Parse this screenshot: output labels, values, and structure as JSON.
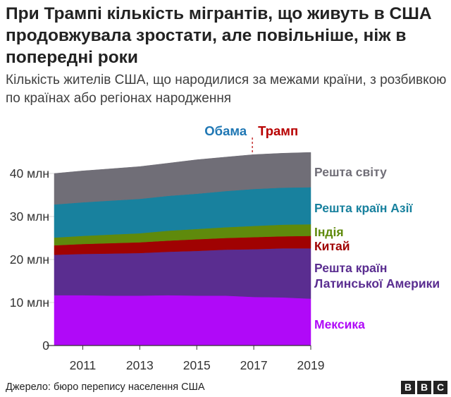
{
  "header": {
    "title": "При Трампі кількість мігрантів, що живуть в США продовжувала зростати, але повільніше, ніж в попередні роки",
    "subtitle": "Кількість жителів США, що народилися за межами країни, з розбивкою по країнах або регіонах народження"
  },
  "footer": {
    "source": "Джерело: бюро перепису населення США",
    "logo": [
      "B",
      "B",
      "C"
    ]
  },
  "annotations": {
    "obama": "Обама",
    "trump": "Трамп",
    "obama_color": "#1f77b4",
    "trump_color": "#b80000",
    "divider_year": 2017
  },
  "chart_data": {
    "type": "area",
    "stacked": true,
    "x": [
      2010,
      2011,
      2012,
      2013,
      2014,
      2015,
      2016,
      2017,
      2018,
      2019
    ],
    "xticks": [
      2011,
      2013,
      2015,
      2017,
      2019
    ],
    "xtick_labels": [
      "2011",
      "2013",
      "2015",
      "2017",
      "2019"
    ],
    "ylim": [
      0,
      45
    ],
    "yticks": [
      0,
      10,
      20,
      30,
      40
    ],
    "ytick_labels": [
      "0",
      "10 млн",
      "20 млн",
      "30 млн",
      "40 млн"
    ],
    "grid": true,
    "legend_placement": "right",
    "series": [
      {
        "name": "Мексика",
        "color": "#b009f8",
        "values": [
          11.7,
          11.7,
          11.6,
          11.6,
          11.7,
          11.6,
          11.6,
          11.3,
          11.2,
          10.9
        ]
      },
      {
        "name": "Решта країн Латинської Америки",
        "color": "#5a2d90",
        "values": [
          9.4,
          9.6,
          9.8,
          9.9,
          10.1,
          10.4,
          10.7,
          11.1,
          11.4,
          11.7
        ]
      },
      {
        "name": "Китай",
        "color": "#a00202",
        "values": [
          2.2,
          2.3,
          2.4,
          2.5,
          2.6,
          2.7,
          2.7,
          2.8,
          2.8,
          2.9
        ]
      },
      {
        "name": "Індія",
        "color": "#5f8a0c",
        "values": [
          1.8,
          1.9,
          2.0,
          2.1,
          2.3,
          2.4,
          2.5,
          2.6,
          2.7,
          2.7
        ]
      },
      {
        "name": "Решта країн Азії",
        "color": "#18819e",
        "values": [
          7.7,
          7.8,
          7.9,
          8.0,
          8.1,
          8.2,
          8.4,
          8.6,
          8.6,
          8.6
        ]
      },
      {
        "name": "Решта світу",
        "color": "#706e77",
        "values": [
          7.2,
          7.3,
          7.4,
          7.5,
          7.6,
          7.9,
          7.9,
          8.0,
          8.0,
          8.1
        ]
      }
    ],
    "legend": [
      {
        "lines": [
          "Решта світу"
        ],
        "color": "#706e77",
        "ref": 5
      },
      {
        "lines": [
          "Решта країн Азії"
        ],
        "color": "#18819e",
        "ref": 4
      },
      {
        "lines": [
          "Індія"
        ],
        "color": "#5f8a0c",
        "ref": 3
      },
      {
        "lines": [
          "Китай"
        ],
        "color": "#a00202",
        "ref": 2
      },
      {
        "lines": [
          "Решта країн",
          "Латинської Америки"
        ],
        "color": "#5a2d90",
        "ref": 1
      },
      {
        "lines": [
          "Мексика"
        ],
        "color": "#b009f8",
        "ref": 0
      }
    ]
  }
}
